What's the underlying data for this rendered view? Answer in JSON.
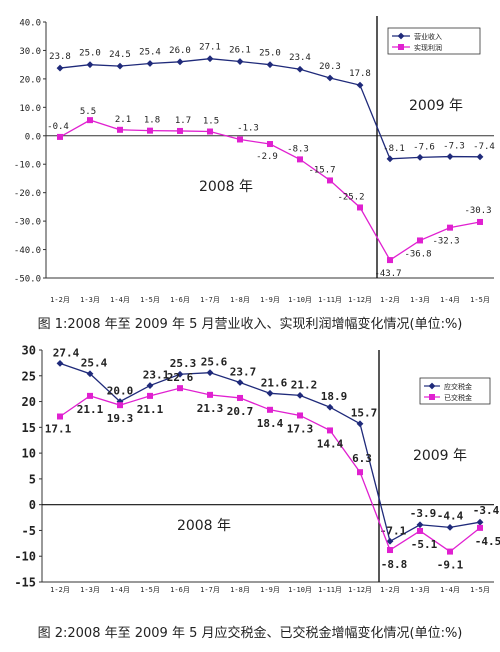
{
  "chart_data": [
    {
      "type": "line",
      "caption": "图 1:2008 年至 2009 年 5 月营业收入、实现利润增幅变化情况(单位:%)",
      "categories": [
        "1-2月",
        "1-3月",
        "1-4月",
        "1-5月",
        "1-6月",
        "1-7月",
        "1-8月",
        "1-9月",
        "1-10月",
        "1-11月",
        "1-12月",
        "1-2月",
        "1-3月",
        "1-4月",
        "1-5月"
      ],
      "ylim": [
        -50,
        40
      ],
      "yticks": [
        "40.0",
        "30.0",
        "20.0",
        "10.0",
        "0.0",
        "-10.0",
        "-20.0",
        "-30.0",
        "-40.0",
        "-50.0"
      ],
      "series": [
        {
          "name": "营业收入",
          "color": "#1f2a7a",
          "marker": "diamond",
          "values": [
            23.8,
            25.0,
            24.5,
            25.4,
            26.0,
            27.1,
            26.1,
            25.0,
            23.4,
            20.3,
            17.8,
            -8.1,
            -7.6,
            -7.3,
            -7.4
          ],
          "labels": [
            "23.8",
            "25.0",
            "24.5",
            "25.4",
            "26.0",
            "27.1",
            "26.1",
            "25.0",
            "23.4",
            "20.3",
            "17.8",
            "-8.1",
            "-7.6",
            "-7.3",
            "-7.4"
          ]
        },
        {
          "name": "实现利润",
          "color": "#e020d0",
          "marker": "square",
          "values": [
            -0.4,
            5.5,
            2.1,
            1.8,
            1.7,
            1.5,
            -1.3,
            -2.9,
            -8.3,
            -15.7,
            -25.2,
            -43.7,
            -36.8,
            -32.3,
            -30.3
          ],
          "labels": [
            "-0.4",
            "5.5",
            "2.1",
            "1.8",
            "1.7",
            "1.5",
            "-1.3",
            "-2.9",
            "-8.3",
            "-15.7",
            "-25.2",
            "-43.7",
            "-36.8",
            "-32.3",
            "-30.3"
          ]
        }
      ],
      "annotations": [
        "2008 年",
        "2009 年"
      ],
      "legend_position": "top-right"
    },
    {
      "type": "line",
      "caption": "图 2:2008 年至 2009 年 5 月应交税金、已交税金增幅变化情况(单位:%)",
      "categories": [
        "1-2月",
        "1-3月",
        "1-4月",
        "1-5月",
        "1-6月",
        "1-7月",
        "1-8月",
        "1-9月",
        "1-10月",
        "1-11月",
        "1-12月",
        "1-2月",
        "1-3月",
        "1-4月",
        "1-5月"
      ],
      "ylim": [
        -15,
        30
      ],
      "yticks": [
        "30",
        "25",
        "20",
        "15",
        "10",
        "5",
        "0",
        "-5",
        "-10",
        "-15"
      ],
      "series": [
        {
          "name": "应交税金",
          "color": "#1f2a7a",
          "marker": "diamond",
          "values": [
            27.4,
            25.4,
            20.0,
            23.1,
            25.3,
            25.6,
            23.7,
            21.6,
            21.2,
            18.9,
            15.7,
            -7.1,
            -3.9,
            -4.4,
            -3.4
          ],
          "labels": [
            "27.4",
            "25.4",
            "20.0",
            "23.1",
            "25.3",
            "25.6",
            "23.7",
            "21.6",
            "21.2",
            "18.9",
            "15.7",
            "-7.1",
            "-3.9",
            "-4.4",
            "-3.4"
          ]
        },
        {
          "name": "已交税金",
          "color": "#e020d0",
          "marker": "square",
          "values": [
            17.1,
            21.1,
            19.3,
            21.1,
            22.6,
            21.3,
            20.7,
            18.4,
            17.3,
            14.4,
            6.3,
            -8.8,
            -5.1,
            -9.1,
            -4.5
          ],
          "labels": [
            "17.1",
            "21.1",
            "19.3",
            "21.1",
            "22.6",
            "21.3",
            "20.7",
            "18.4",
            "17.3",
            "14.4",
            "6.3",
            "-8.8",
            "-5.1",
            "-9.1",
            "-4.5"
          ]
        }
      ],
      "annotations": [
        "2008 年",
        "2009 年"
      ],
      "legend_position": "right"
    }
  ]
}
